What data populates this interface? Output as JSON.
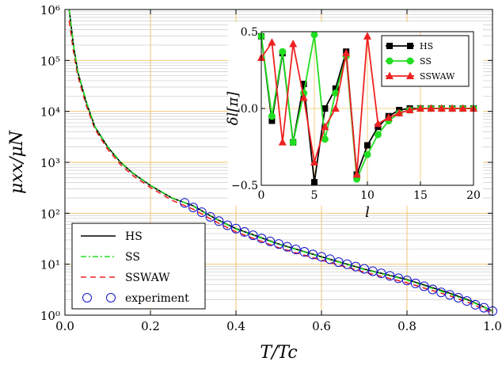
{
  "chart_data": [
    {
      "type": "line",
      "xlabel": "T/Tc",
      "ylabel": "μxx/μN",
      "xlim": [
        0,
        1
      ],
      "ylim": [
        1,
        1000000
      ],
      "yscale": "log",
      "grid": true,
      "legend_position": "bottom-left",
      "xticks": [
        "0.0",
        "0.2",
        "0.4",
        "0.6",
        "0.8",
        "1.0"
      ],
      "yticks": [
        "10⁰",
        "10¹",
        "10²",
        "10³",
        "10⁴",
        "10⁵",
        "10⁶"
      ],
      "colors": {
        "HS": "#000000",
        "SS": "#22dd22",
        "SSWAW": "#ee2222",
        "experiment": "#1010cc",
        "grid_major": "#f0c060",
        "grid_minor": "#cccccc"
      },
      "series": [
        {
          "name": "HS",
          "style": "solid",
          "x": [
            0.01,
            0.02,
            0.03,
            0.05,
            0.07,
            0.1,
            0.13,
            0.16,
            0.2,
            0.25,
            0.3,
            0.35,
            0.4,
            0.5,
            0.6,
            0.7,
            0.8,
            0.9,
            0.95,
            1.0
          ],
          "y": [
            1000000,
            200000,
            60000,
            15000,
            5000,
            2000,
            1000,
            600,
            350,
            200,
            140,
            80,
            50,
            25,
            14,
            8,
            5,
            2.7,
            1.9,
            1.2
          ]
        },
        {
          "name": "SS",
          "style": "dash-dot",
          "x": [
            0.01,
            0.02,
            0.03,
            0.05,
            0.07,
            0.1,
            0.13,
            0.16,
            0.2,
            0.25,
            0.3,
            0.35,
            0.4,
            0.5,
            0.6,
            0.7,
            0.8,
            0.9,
            0.95,
            1.0
          ],
          "y": [
            1000000,
            200000,
            62000,
            15500,
            5100,
            2050,
            1020,
            610,
            355,
            202,
            138,
            79,
            49,
            24.5,
            13.8,
            7.9,
            4.9,
            2.6,
            1.85,
            1.2
          ]
        },
        {
          "name": "SSWAW",
          "style": "dashed",
          "x": [
            0.01,
            0.02,
            0.03,
            0.05,
            0.07,
            0.1,
            0.13,
            0.16,
            0.2,
            0.25,
            0.3,
            0.35,
            0.4,
            0.5,
            0.6,
            0.7,
            0.8,
            0.9,
            0.95,
            1.0
          ],
          "y": [
            600000,
            150000,
            50000,
            13000,
            4500,
            1800,
            900,
            540,
            320,
            180,
            120,
            70,
            43,
            21,
            12,
            7,
            4.3,
            2.4,
            1.7,
            1.1
          ]
        },
        {
          "name": "experiment",
          "style": "markers",
          "x": [
            0.28,
            0.3,
            0.32,
            0.34,
            0.36,
            0.38,
            0.4,
            0.42,
            0.44,
            0.46,
            0.48,
            0.5,
            0.52,
            0.54,
            0.56,
            0.58,
            0.6,
            0.62,
            0.64,
            0.66,
            0.68,
            0.7,
            0.72,
            0.74,
            0.76,
            0.78,
            0.8,
            0.82,
            0.84,
            0.86,
            0.88,
            0.9,
            0.92,
            0.94,
            0.96,
            0.98,
            1.0
          ],
          "y": [
            160,
            130,
            105,
            85,
            70,
            58,
            50,
            43,
            37,
            32,
            28,
            25,
            22,
            19.5,
            17.5,
            15.5,
            14,
            12.5,
            11,
            10,
            9,
            8.1,
            7.3,
            6.6,
            5.9,
            5.3,
            4.8,
            4.2,
            3.7,
            3.2,
            2.8,
            2.5,
            2.2,
            1.9,
            1.6,
            1.4,
            1.2
          ]
        }
      ],
      "legend": [
        "HS",
        "SS",
        "SSWAW",
        "experiment"
      ]
    },
    {
      "type": "line",
      "xlabel": "l",
      "ylabel": "δl[π]",
      "xlim": [
        0,
        20
      ],
      "ylim": [
        -0.5,
        0.5
      ],
      "grid": true,
      "legend_position": "top-right",
      "xticks": [
        "0",
        "5",
        "10",
        "15",
        "20"
      ],
      "yticks": [
        "−0.5",
        "0.0",
        "0.5"
      ],
      "series": [
        {
          "name": "HS",
          "marker": "square",
          "color": "#000000",
          "x": [
            0,
            1,
            2,
            3,
            4,
            5,
            6,
            7,
            8,
            9,
            10,
            11,
            12,
            13,
            14,
            15,
            16,
            17,
            18,
            19,
            20
          ],
          "y": [
            0.47,
            -0.08,
            0.36,
            -0.22,
            0.16,
            -0.48,
            0.0,
            0.13,
            0.37,
            -0.43,
            -0.24,
            -0.12,
            -0.05,
            -0.01,
            0.0,
            0.0,
            0.0,
            0.0,
            0.0,
            0.0,
            0.0
          ]
        },
        {
          "name": "SS",
          "marker": "circle",
          "color": "#22dd22",
          "x": [
            0,
            1,
            2,
            3,
            4,
            5,
            6,
            7,
            8,
            9,
            10,
            11,
            12,
            13,
            14,
            15,
            16,
            17,
            18,
            19,
            20
          ],
          "y": [
            0.47,
            -0.05,
            0.37,
            -0.22,
            0.1,
            0.48,
            -0.2,
            0.1,
            0.34,
            -0.46,
            -0.3,
            -0.17,
            -0.08,
            -0.03,
            -0.01,
            0.0,
            0.0,
            0.0,
            0.0,
            0.0,
            0.0
          ]
        },
        {
          "name": "SSWAW",
          "marker": "triangle",
          "color": "#ee2222",
          "x": [
            0,
            1,
            2,
            3,
            4,
            5,
            6,
            7,
            8,
            9,
            10,
            11,
            12,
            13,
            14,
            15,
            16,
            17,
            18,
            19,
            20
          ],
          "y": [
            0.33,
            0.43,
            -0.22,
            0.42,
            0.07,
            -0.35,
            -0.12,
            0.0,
            0.36,
            -0.43,
            0.47,
            -0.1,
            -0.06,
            -0.03,
            -0.01,
            0.0,
            0.0,
            0.0,
            0.0,
            0.0,
            0.0
          ]
        }
      ],
      "legend": [
        "HS",
        "SS",
        "SSWAW"
      ]
    }
  ]
}
